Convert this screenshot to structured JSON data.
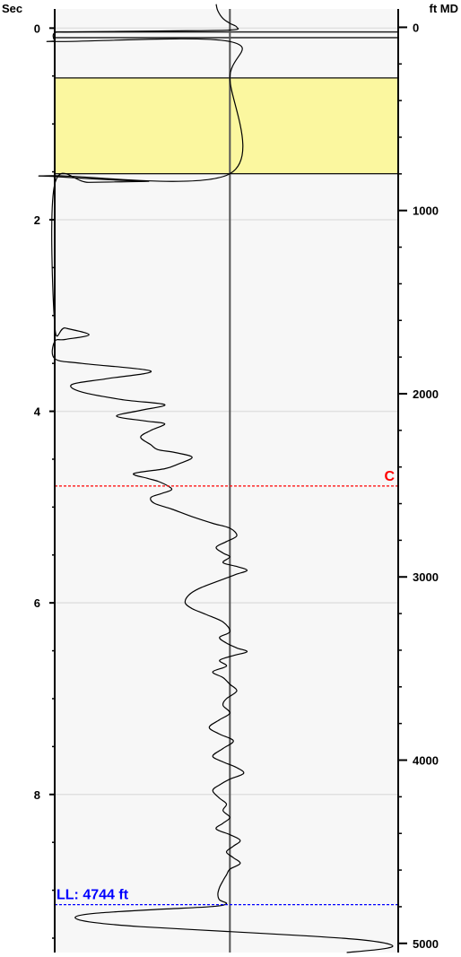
{
  "chart_data": {
    "type": "line",
    "left_axis": {
      "title": "Sec",
      "range": [
        -0.2,
        9.65
      ],
      "ticks": [
        0,
        2,
        4,
        6,
        8
      ],
      "tick_labels": [
        "0",
        "2",
        "4",
        "6",
        "8"
      ],
      "minor_step": 0.5,
      "reversed": true
    },
    "right_axis": {
      "title": "ft MD",
      "range": [
        -100,
        5050
      ],
      "ticks": [
        0,
        1000,
        2000,
        3000,
        4000,
        5000
      ],
      "tick_labels": [
        "0",
        "1000",
        "2000",
        "3000",
        "4000",
        "5000"
      ],
      "minor_step": 200,
      "reversed": true
    },
    "x_range": [
      0,
      100
    ],
    "center_line_x": 51,
    "grid": "horizontal",
    "colors": {
      "background": "#f7f7f7",
      "grid": "#e0e0e0",
      "trace": "#000000",
      "center_line": "#555555",
      "highlight_fill": "#fbf79f",
      "marker_c": "#ff0000",
      "marker_ll": "#0000ff"
    },
    "highlight_band": {
      "top_sec": 0.52,
      "bottom_sec": 1.52
    },
    "horizontal_lines_sec": [
      0.04,
      0.1
    ],
    "markers": [
      {
        "label": "C",
        "sec": 4.78,
        "color": "#ff0000",
        "label_side": "right"
      },
      {
        "label": "LL: 4744 ft",
        "sec": 9.15,
        "color": "#0000ff",
        "label_side": "left"
      }
    ],
    "series": [
      {
        "points": [
          [
            47,
            -0.25
          ],
          [
            47.5,
            -0.18
          ],
          [
            49,
            -0.1
          ],
          [
            51,
            -0.05
          ],
          [
            53,
            -0.01
          ],
          [
            51,
            0.02
          ],
          [
            30,
            0.03
          ],
          [
            5,
            0.04
          ],
          [
            0,
            0.05
          ],
          [
            0,
            0.13
          ],
          [
            2,
            0.14
          ],
          [
            51,
            0.14
          ],
          [
            51,
            0.52
          ],
          [
            51,
            1.52
          ],
          [
            0,
            1.54
          ],
          [
            0,
            1.55
          ],
          [
            20,
            1.59
          ],
          [
            27,
            1.6
          ],
          [
            10,
            1.61
          ],
          [
            0,
            1.63
          ],
          [
            0,
            3.1
          ],
          [
            3,
            3.13
          ],
          [
            10,
            3.2
          ],
          [
            3,
            3.25
          ],
          [
            0,
            3.27
          ],
          [
            0,
            3.45
          ],
          [
            8,
            3.5
          ],
          [
            28,
            3.58
          ],
          [
            15,
            3.66
          ],
          [
            5,
            3.72
          ],
          [
            8,
            3.8
          ],
          [
            20,
            3.88
          ],
          [
            32,
            3.93
          ],
          [
            25,
            3.99
          ],
          [
            18,
            4.05
          ],
          [
            26,
            4.1
          ],
          [
            32,
            4.13
          ],
          [
            28,
            4.2
          ],
          [
            25,
            4.27
          ],
          [
            28,
            4.35
          ],
          [
            30,
            4.4
          ],
          [
            35,
            4.43
          ],
          [
            40,
            4.48
          ],
          [
            36,
            4.55
          ],
          [
            32,
            4.6
          ],
          [
            23,
            4.65
          ],
          [
            27,
            4.7
          ],
          [
            30,
            4.73
          ],
          [
            33,
            4.78
          ],
          [
            34,
            4.82
          ],
          [
            31,
            4.86
          ],
          [
            28,
            4.9
          ],
          [
            29,
            4.96
          ],
          [
            34,
            5.02
          ],
          [
            40,
            5.1
          ],
          [
            46,
            5.17
          ],
          [
            51,
            5.22
          ],
          [
            53,
            5.3
          ],
          [
            50,
            5.36
          ],
          [
            47,
            5.42
          ],
          [
            49,
            5.48
          ],
          [
            51,
            5.52
          ],
          [
            49,
            5.58
          ],
          [
            53,
            5.62
          ],
          [
            56,
            5.66
          ],
          [
            53,
            5.7
          ],
          [
            50,
            5.74
          ],
          [
            47,
            5.78
          ],
          [
            42,
            5.85
          ],
          [
            39,
            5.92
          ],
          [
            38,
            6.0
          ],
          [
            40,
            6.06
          ],
          [
            44,
            6.12
          ],
          [
            49,
            6.2
          ],
          [
            51,
            6.3
          ],
          [
            48,
            6.36
          ],
          [
            50,
            6.42
          ],
          [
            53,
            6.47
          ],
          [
            56,
            6.51
          ],
          [
            52,
            6.55
          ],
          [
            48,
            6.6
          ],
          [
            50,
            6.66
          ],
          [
            46,
            6.72
          ],
          [
            49,
            6.78
          ],
          [
            51,
            6.85
          ],
          [
            53,
            6.92
          ],
          [
            50,
            7.0
          ],
          [
            49,
            7.07
          ],
          [
            51,
            7.15
          ],
          [
            48,
            7.22
          ],
          [
            45,
            7.3
          ],
          [
            48,
            7.37
          ],
          [
            52,
            7.44
          ],
          [
            49,
            7.52
          ],
          [
            46,
            7.6
          ],
          [
            49,
            7.66
          ],
          [
            53,
            7.72
          ],
          [
            55,
            7.78
          ],
          [
            51,
            7.84
          ],
          [
            48,
            7.9
          ],
          [
            46,
            7.96
          ],
          [
            48,
            8.04
          ],
          [
            50,
            8.1
          ],
          [
            49,
            8.17
          ],
          [
            51,
            8.24
          ],
          [
            49,
            8.3
          ],
          [
            47,
            8.36
          ],
          [
            51,
            8.42
          ],
          [
            54,
            8.48
          ],
          [
            52,
            8.54
          ],
          [
            50,
            8.6
          ],
          [
            52,
            8.66
          ],
          [
            54,
            8.72
          ],
          [
            51,
            8.78
          ],
          [
            50,
            8.84
          ],
          [
            49,
            8.9
          ],
          [
            48,
            8.97
          ],
          [
            47.5,
            9.04
          ],
          [
            48,
            9.1
          ],
          [
            50,
            9.14
          ],
          [
            46,
            9.17
          ],
          [
            30,
            9.2
          ],
          [
            12,
            9.24
          ],
          [
            6,
            9.28
          ],
          [
            10,
            9.33
          ],
          [
            25,
            9.38
          ],
          [
            50,
            9.43
          ],
          [
            75,
            9.48
          ],
          [
            90,
            9.52
          ],
          [
            98,
            9.57
          ],
          [
            96,
            9.61
          ],
          [
            85,
            9.65
          ]
        ]
      }
    ]
  }
}
